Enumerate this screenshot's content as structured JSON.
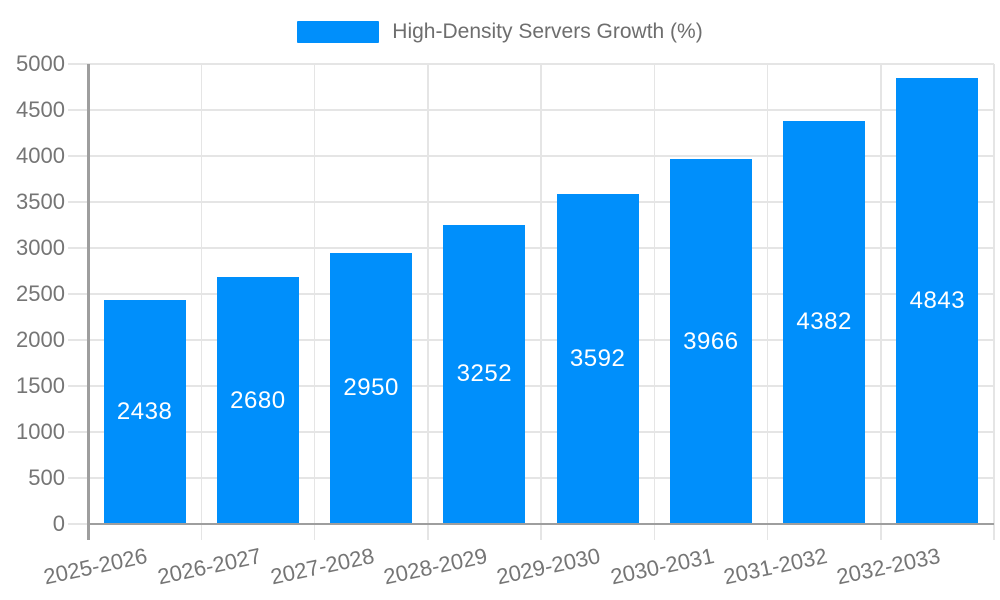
{
  "chart_data": {
    "type": "bar",
    "title": "High-Density Servers Growth (%)",
    "series": [
      {
        "name": "High-Density Servers Growth (%)",
        "values": [
          2438,
          2680,
          2950,
          3252,
          3592,
          3966,
          4382,
          4843
        ]
      }
    ],
    "categories": [
      "2025-2026",
      "2026-2027",
      "2027-2028",
      "2028-2029",
      "2029-2030",
      "2030-2031",
      "2031-2032",
      "2032-2033"
    ],
    "xlabel": "",
    "ylabel": "",
    "ylim": [
      0,
      5000
    ],
    "ytick_step": 500,
    "ytick_labels": [
      "0",
      "500",
      "1000",
      "1500",
      "2000",
      "2500",
      "3000",
      "3500",
      "4000",
      "4500",
      "5000"
    ],
    "grid": true,
    "legend_position": "top",
    "value_labels": "inside-center",
    "x_label_rotation_deg": -12,
    "colors": {
      "bar": "#008FFB",
      "value_label_text": "#ffffff",
      "axis_label_text": "#757575",
      "legend_text": "#6e6e6e",
      "gridline": "#e5e5e5",
      "axis_line": "#9e9e9e"
    }
  }
}
